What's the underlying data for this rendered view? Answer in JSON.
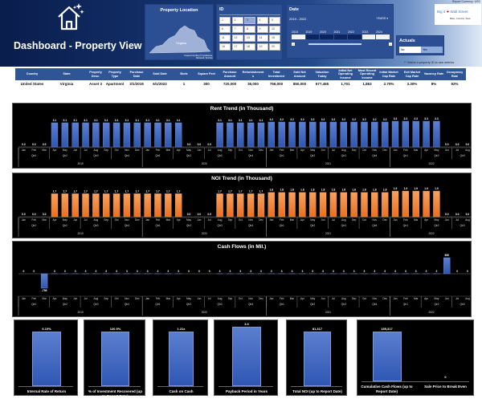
{
  "header": {
    "title": "Dashboard - Property View",
    "report_currency": "Report Currency: USD",
    "note": "** Select a property ID to see metrics",
    "icon": "house-icon"
  },
  "property_location": {
    "title": "Property Location",
    "region": "Virginia",
    "credit": "Powered by Bing © GeoNames, Microsoft, TomTom"
  },
  "id_slicer": {
    "title": "ID",
    "items": [
      "1",
      "2",
      "3",
      "4",
      "5",
      "6",
      "7",
      "8",
      "9",
      "10",
      "11",
      "12",
      "13",
      "14",
      "15",
      "16",
      "17",
      "18",
      "19",
      "20"
    ],
    "selected": "3"
  },
  "date_slicer": {
    "title": "Date",
    "range": "2019 - 2022",
    "granularity": "YEARS",
    "years": [
      "2018",
      "2019",
      "2020",
      "2021",
      "2022",
      "2023",
      "2024"
    ],
    "selected_years": [
      "2019",
      "2020",
      "2021",
      "2022"
    ]
  },
  "actuals": {
    "title": "Actuals",
    "options": [
      "No",
      "Yes"
    ],
    "selected": "Yes"
  },
  "logo": {
    "text": "Big 4 Wall Street",
    "tagline": "Bitter, Concise, Real"
  },
  "table": {
    "headers": [
      "Country",
      "State",
      "Property Desc.",
      "Property Type",
      "Purchase Date",
      "Sold Date",
      "Beds",
      "Square Feet",
      "Purchase Amount",
      "Refurbishment s",
      "Total Investment",
      "Sold Net Amount",
      "Valuation Today",
      "Initial Net Operating Income",
      "Most Recent Operating Income",
      "Initial Market Cap Rate",
      "Exit Market Cap Rate",
      "Vacancy Rate",
      "Occupancy Rate"
    ],
    "row": [
      "United States",
      "Virginia",
      "Asset 3",
      "Apartment",
      "3/1/2019",
      "6/1/2022",
      "1",
      "300",
      "720,000",
      "36,000",
      "756,000",
      "850,000",
      "677,455",
      "1,701",
      "1,863",
      "2.70%",
      "3.30%",
      "8%",
      "92%"
    ]
  },
  "colors": {
    "rent_bar": "#4472c4",
    "noi_bar": "#ed7d31",
    "header_navy": "#0a1d4c",
    "panel": "#2c4f93"
  },
  "chart_data": [
    {
      "type": "bar",
      "title": "Rent Trend (in Thousand)",
      "decimals": 1,
      "categories": [
        "Jan",
        "Feb",
        "Mar",
        "Apr",
        "May",
        "Jun",
        "Jul",
        "Aug",
        "Sep",
        "Oct",
        "Nov",
        "Dec",
        "Jan",
        "Feb",
        "Mar",
        "Apr",
        "May",
        "Jun",
        "Jul",
        "Aug",
        "Sep",
        "Oct",
        "Nov",
        "Dec",
        "Jan",
        "Feb",
        "Mar",
        "Apr",
        "May",
        "Jun",
        "Jul",
        "Aug",
        "Sep",
        "Oct",
        "Nov",
        "Dec",
        "Jan",
        "Feb",
        "Mar",
        "Apr",
        "May",
        "Jun",
        "Jul",
        "Aug"
      ],
      "years": [
        [
          "2019",
          12
        ],
        [
          "2020",
          12
        ],
        [
          "2021",
          12
        ],
        [
          "2022",
          8
        ]
      ],
      "values": [
        0,
        0,
        0,
        3.1,
        3.1,
        3.1,
        3.1,
        3.1,
        3.1,
        3.1,
        3.1,
        3.1,
        3.1,
        3.1,
        3.1,
        3.1,
        0,
        0,
        0,
        3.1,
        3.1,
        3.1,
        3.1,
        3.1,
        3.2,
        3.2,
        3.2,
        3.2,
        3.2,
        3.2,
        3.2,
        3.2,
        3.2,
        3.2,
        3.2,
        3.2,
        3.3,
        3.3,
        3.3,
        3.3,
        3.3,
        0,
        0,
        0
      ]
    },
    {
      "type": "bar",
      "title": "NOI Trend (in Thousand)",
      "decimals": 1,
      "categories": [
        "Jan",
        "Feb",
        "Mar",
        "Apr",
        "May",
        "Jun",
        "Jul",
        "Aug",
        "Sep",
        "Oct",
        "Nov",
        "Dec",
        "Jan",
        "Feb",
        "Mar",
        "Apr",
        "May",
        "Jun",
        "Jul",
        "Aug",
        "Sep",
        "Oct",
        "Nov",
        "Dec",
        "Jan",
        "Feb",
        "Mar",
        "Apr",
        "May",
        "Jun",
        "Jul",
        "Aug",
        "Sep",
        "Oct",
        "Nov",
        "Dec",
        "Jan",
        "Feb",
        "Mar",
        "Apr",
        "May",
        "Jun",
        "Jul",
        "Aug"
      ],
      "years": [
        [
          "2019",
          12
        ],
        [
          "2020",
          12
        ],
        [
          "2021",
          12
        ],
        [
          "2022",
          8
        ]
      ],
      "values": [
        0,
        0,
        0,
        1.7,
        1.7,
        1.7,
        1.7,
        1.7,
        1.7,
        1.7,
        1.7,
        1.7,
        1.7,
        1.7,
        1.7,
        1.7,
        0,
        0,
        0,
        1.7,
        1.7,
        1.7,
        1.7,
        1.7,
        1.8,
        1.8,
        1.8,
        1.8,
        1.8,
        1.8,
        1.8,
        1.8,
        1.8,
        1.8,
        1.8,
        1.8,
        1.9,
        1.9,
        1.9,
        1.9,
        1.9,
        0,
        0,
        0
      ]
    },
    {
      "type": "bar",
      "title": "Cash Flows (in Mil.)",
      "decimals": 0,
      "categories": [
        "Jan",
        "Feb",
        "Mar",
        "Apr",
        "May",
        "Jun",
        "Jul",
        "Aug",
        "Sep",
        "Oct",
        "Nov",
        "Dec",
        "Jan",
        "Feb",
        "Mar",
        "Apr",
        "May",
        "Jun",
        "Jul",
        "Aug",
        "Sep",
        "Oct",
        "Nov",
        "Dec",
        "Jan",
        "Feb",
        "Mar",
        "Apr",
        "May",
        "Jun",
        "Jul",
        "Aug",
        "Sep",
        "Oct",
        "Nov",
        "Dec",
        "Jan",
        "Feb",
        "Mar",
        "Apr",
        "May",
        "Jun",
        "Jul",
        "Aug"
      ],
      "years": [
        [
          "2019",
          12
        ],
        [
          "2020",
          12
        ],
        [
          "2021",
          12
        ],
        [
          "2022",
          8
        ]
      ],
      "values": [
        0,
        0,
        -756,
        3,
        3,
        3,
        3,
        3,
        3,
        3,
        3,
        3,
        3,
        3,
        3,
        3,
        0,
        0,
        0,
        3,
        3,
        3,
        3,
        3,
        3,
        3,
        3,
        3,
        3,
        3,
        3,
        3,
        3,
        3,
        3,
        3,
        3,
        3,
        3,
        3,
        3,
        850,
        0,
        0
      ]
    }
  ],
  "kpis": [
    {
      "label": "Internal Rate of Return",
      "value": "6.10%"
    },
    {
      "label": "% of Investment Recovered (up to Report Date)",
      "value": "120.5%"
    },
    {
      "label": "Cash on Cash",
      "value": "1.21x"
    },
    {
      "label": "Payback Period in Years",
      "value": "3.3"
    },
    {
      "label": "Total NOI (up to Report Date)",
      "value": "81,317"
    },
    {
      "label": "Cumulative Cash Flows (up to Report Date)",
      "value": "155,317"
    },
    {
      "label": "Sale Price to Break Even",
      "value": "0"
    }
  ]
}
